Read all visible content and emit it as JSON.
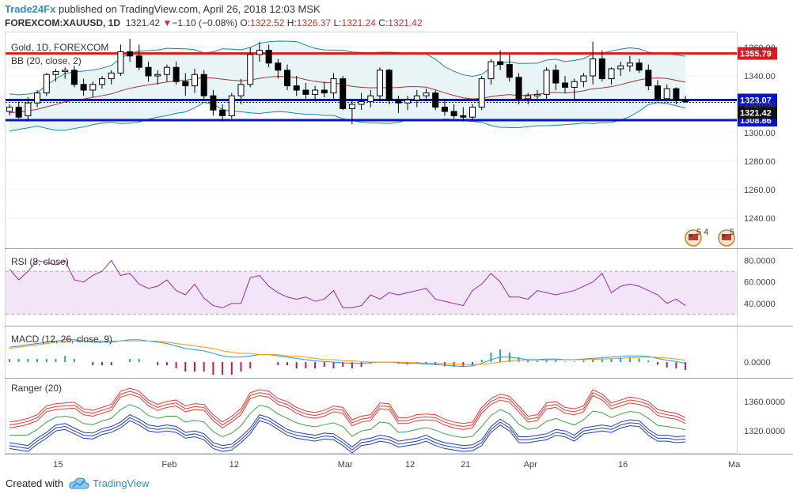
{
  "header": {
    "brand": "Trade24Fx",
    "published": "published on TradingView.com, April 26, 2018 12:03 MSK",
    "symbol": "FOREXCOM:XAUUSD, 1D",
    "last": "1321.42",
    "change_arrow": "▼",
    "change": "−1.10 (−0.08%)",
    "o_label": "O:",
    "o_value": "1322.52",
    "h_label": "H:",
    "h_value": "1326.37",
    "l_label": "L:",
    "l_value": "1321.24",
    "c_label": "C:",
    "c_value": "1321.42"
  },
  "footer": {
    "created_with": "Created with",
    "brand": "TradingView",
    "logo_icon": "tradingview-cloud-icon"
  },
  "colors": {
    "accent": "#2b8fd8",
    "resistance": "#e0191f",
    "support": "#0a14c8",
    "rsi": "#9c27b0",
    "macd": "#2196f3",
    "signal": "#ff9800"
  },
  "chart_data": [
    {
      "type": "candlestick",
      "title": "Gold, 1D, FOREXCOM",
      "indicator": "BB (20, close, 2)",
      "ylim": [
        1220,
        1370
      ],
      "y_ticks": [
        "1240.00",
        "1260.00",
        "1280.00",
        "1300.00",
        "1320.00",
        "1340.00",
        "1360.00"
      ],
      "x_ticks": [
        "15",
        "Feb",
        "12",
        "Mar",
        "12",
        "21",
        "Apr",
        "16",
        "Ma"
      ],
      "horizontal_lines": [
        {
          "label": "1355.79",
          "value": 1355.79,
          "color": "#e0191f"
        },
        {
          "label": "1323.07",
          "value": 1323.07,
          "color": "#0a14c8"
        },
        {
          "label": "1308.86",
          "value": 1308.86,
          "color": "#0a14c8"
        }
      ],
      "last_price_label": "1321.42",
      "event_markers": [
        "5 4",
        "5"
      ],
      "candles": [
        [
          1315,
          1320,
          1312,
          1318
        ],
        [
          1318,
          1322,
          1310,
          1311
        ],
        [
          1312,
          1325,
          1308,
          1321
        ],
        [
          1321,
          1330,
          1318,
          1328
        ],
        [
          1328,
          1342,
          1326,
          1341
        ],
        [
          1341,
          1345,
          1336,
          1343
        ],
        [
          1343,
          1346,
          1338,
          1344
        ],
        [
          1344,
          1347,
          1332,
          1334
        ],
        [
          1334,
          1338,
          1326,
          1330
        ],
        [
          1330,
          1336,
          1325,
          1334
        ],
        [
          1334,
          1340,
          1331,
          1338
        ],
        [
          1338,
          1344,
          1334,
          1342
        ],
        [
          1342,
          1362,
          1340,
          1357
        ],
        [
          1357,
          1366,
          1350,
          1354
        ],
        [
          1354,
          1362,
          1344,
          1346
        ],
        [
          1346,
          1350,
          1336,
          1340
        ],
        [
          1340,
          1344,
          1334,
          1341
        ],
        [
          1341,
          1348,
          1336,
          1346
        ],
        [
          1346,
          1350,
          1334,
          1336
        ],
        [
          1336,
          1342,
          1326,
          1333
        ],
        [
          1333,
          1345,
          1328,
          1341
        ],
        [
          1341,
          1344,
          1324,
          1326
        ],
        [
          1326,
          1330,
          1312,
          1316
        ],
        [
          1316,
          1320,
          1308,
          1312
        ],
        [
          1312,
          1328,
          1310,
          1326
        ],
        [
          1326,
          1338,
          1320,
          1334
        ],
        [
          1334,
          1360,
          1332,
          1355
        ],
        [
          1355,
          1364,
          1350,
          1358
        ],
        [
          1358,
          1362,
          1346,
          1349
        ],
        [
          1349,
          1352,
          1338,
          1344
        ],
        [
          1344,
          1348,
          1330,
          1333
        ],
        [
          1333,
          1340,
          1326,
          1330
        ],
        [
          1330,
          1335,
          1324,
          1327
        ],
        [
          1327,
          1333,
          1322,
          1330
        ],
        [
          1330,
          1336,
          1325,
          1328
        ],
        [
          1328,
          1342,
          1324,
          1338
        ],
        [
          1338,
          1340,
          1316,
          1317
        ],
        [
          1317,
          1323,
          1306,
          1320
        ],
        [
          1320,
          1328,
          1316,
          1322
        ],
        [
          1322,
          1330,
          1318,
          1326
        ],
        [
          1326,
          1346,
          1322,
          1344
        ],
        [
          1344,
          1345,
          1320,
          1323
        ],
        [
          1323,
          1326,
          1314,
          1321
        ],
        [
          1321,
          1326,
          1316,
          1323
        ],
        [
          1323,
          1330,
          1318,
          1326
        ],
        [
          1326,
          1331,
          1322,
          1328
        ],
        [
          1328,
          1330,
          1316,
          1318
        ],
        [
          1318,
          1324,
          1312,
          1315
        ],
        [
          1315,
          1320,
          1310,
          1312
        ],
        [
          1312,
          1318,
          1308,
          1311
        ],
        [
          1311,
          1320,
          1309,
          1318
        ],
        [
          1318,
          1340,
          1316,
          1338
        ],
        [
          1338,
          1352,
          1334,
          1350
        ],
        [
          1350,
          1358,
          1344,
          1348
        ],
        [
          1348,
          1355,
          1336,
          1339
        ],
        [
          1339,
          1342,
          1320,
          1324
        ],
        [
          1324,
          1328,
          1320,
          1326
        ],
        [
          1326,
          1330,
          1322,
          1327
        ],
        [
          1327,
          1346,
          1324,
          1344
        ],
        [
          1344,
          1348,
          1330,
          1335
        ],
        [
          1335,
          1340,
          1328,
          1332
        ],
        [
          1332,
          1338,
          1322,
          1336
        ],
        [
          1336,
          1342,
          1332,
          1340
        ],
        [
          1340,
          1364,
          1334,
          1352
        ],
        [
          1352,
          1358,
          1336,
          1338
        ],
        [
          1338,
          1346,
          1334,
          1345
        ],
        [
          1345,
          1350,
          1340,
          1347
        ],
        [
          1347,
          1354,
          1343,
          1349
        ],
        [
          1349,
          1352,
          1342,
          1344
        ],
        [
          1344,
          1348,
          1330,
          1333
        ],
        [
          1333,
          1337,
          1322,
          1324
        ],
        [
          1324,
          1334,
          1322,
          1331
        ],
        [
          1331,
          1332,
          1320,
          1323
        ],
        [
          1323,
          1326,
          1321,
          1322
        ]
      ]
    },
    {
      "type": "line",
      "title": "RSI (8, close)",
      "ylim": [
        20,
        90
      ],
      "y_ticks": [
        "40.0000",
        "60.0000",
        "80.0000"
      ],
      "bands": [
        30,
        70
      ],
      "series": [
        {
          "values": [
            72,
            62,
            70,
            80,
            78,
            76,
            80,
            62,
            60,
            66,
            70,
            80,
            66,
            68,
            58,
            54,
            56,
            62,
            52,
            48,
            58,
            45,
            38,
            36,
            40,
            40,
            64,
            66,
            56,
            50,
            46,
            44,
            46,
            42,
            44,
            52,
            36,
            36,
            38,
            48,
            44,
            50,
            48,
            50,
            52,
            54,
            44,
            42,
            40,
            38,
            52,
            58,
            68,
            60,
            46,
            46,
            44,
            52,
            50,
            48,
            50,
            52,
            56,
            60,
            68,
            50,
            56,
            58,
            56,
            52,
            48,
            40,
            44,
            38
          ]
        }
      ]
    },
    {
      "type": "line",
      "title": "MACD (12, 26, close, 9)",
      "ylim": [
        -12,
        28
      ],
      "y_ticks": [
        "0.0000"
      ],
      "series": [
        {
          "values": [
            12,
            13,
            14,
            15,
            16,
            17,
            18,
            18,
            17,
            16,
            16,
            16,
            17,
            18,
            18,
            17,
            16,
            15,
            13,
            11,
            10,
            9,
            7,
            5,
            4,
            4,
            5,
            6,
            6,
            5,
            4,
            3,
            2,
            1,
            0.5,
            0,
            -0.5,
            -1,
            -1,
            -0.5,
            0,
            0,
            -0.5,
            -1,
            -1,
            -1.5,
            -2,
            -2.5,
            -3,
            -3.5,
            -3,
            -1,
            2,
            4,
            4,
            3,
            2,
            2,
            2.5,
            2.5,
            2,
            2,
            2.5,
            3,
            3.5,
            4,
            4.5,
            5,
            5,
            4.5,
            3,
            1.5,
            0.5,
            -1
          ]
        },
        {
          "values": [
            11,
            12,
            13,
            14,
            15,
            16,
            16,
            17,
            17,
            17,
            17,
            17,
            17,
            17,
            17,
            17,
            17,
            16,
            15,
            14,
            13,
            12,
            11,
            9,
            8,
            7,
            7,
            6,
            6,
            6,
            5,
            5,
            4,
            3,
            2,
            2,
            1,
            1,
            0.5,
            0,
            0,
            0,
            0,
            -0.3,
            -0.5,
            -0.8,
            -1,
            -1.2,
            -1.5,
            -2,
            -2,
            -1.8,
            -1,
            0,
            1,
            1.5,
            1.5,
            1.6,
            1.7,
            1.8,
            1.8,
            1.8,
            2,
            2.2,
            2.5,
            2.8,
            3,
            3.4,
            3.8,
            4,
            3.8,
            3.2,
            2.5,
            1.5
          ]
        }
      ]
    },
    {
      "type": "line",
      "title": "Ranger (20)",
      "ylim": [
        1290,
        1390
      ],
      "y_ticks": [
        "1320.0000",
        "1360.0000"
      ]
    }
  ]
}
